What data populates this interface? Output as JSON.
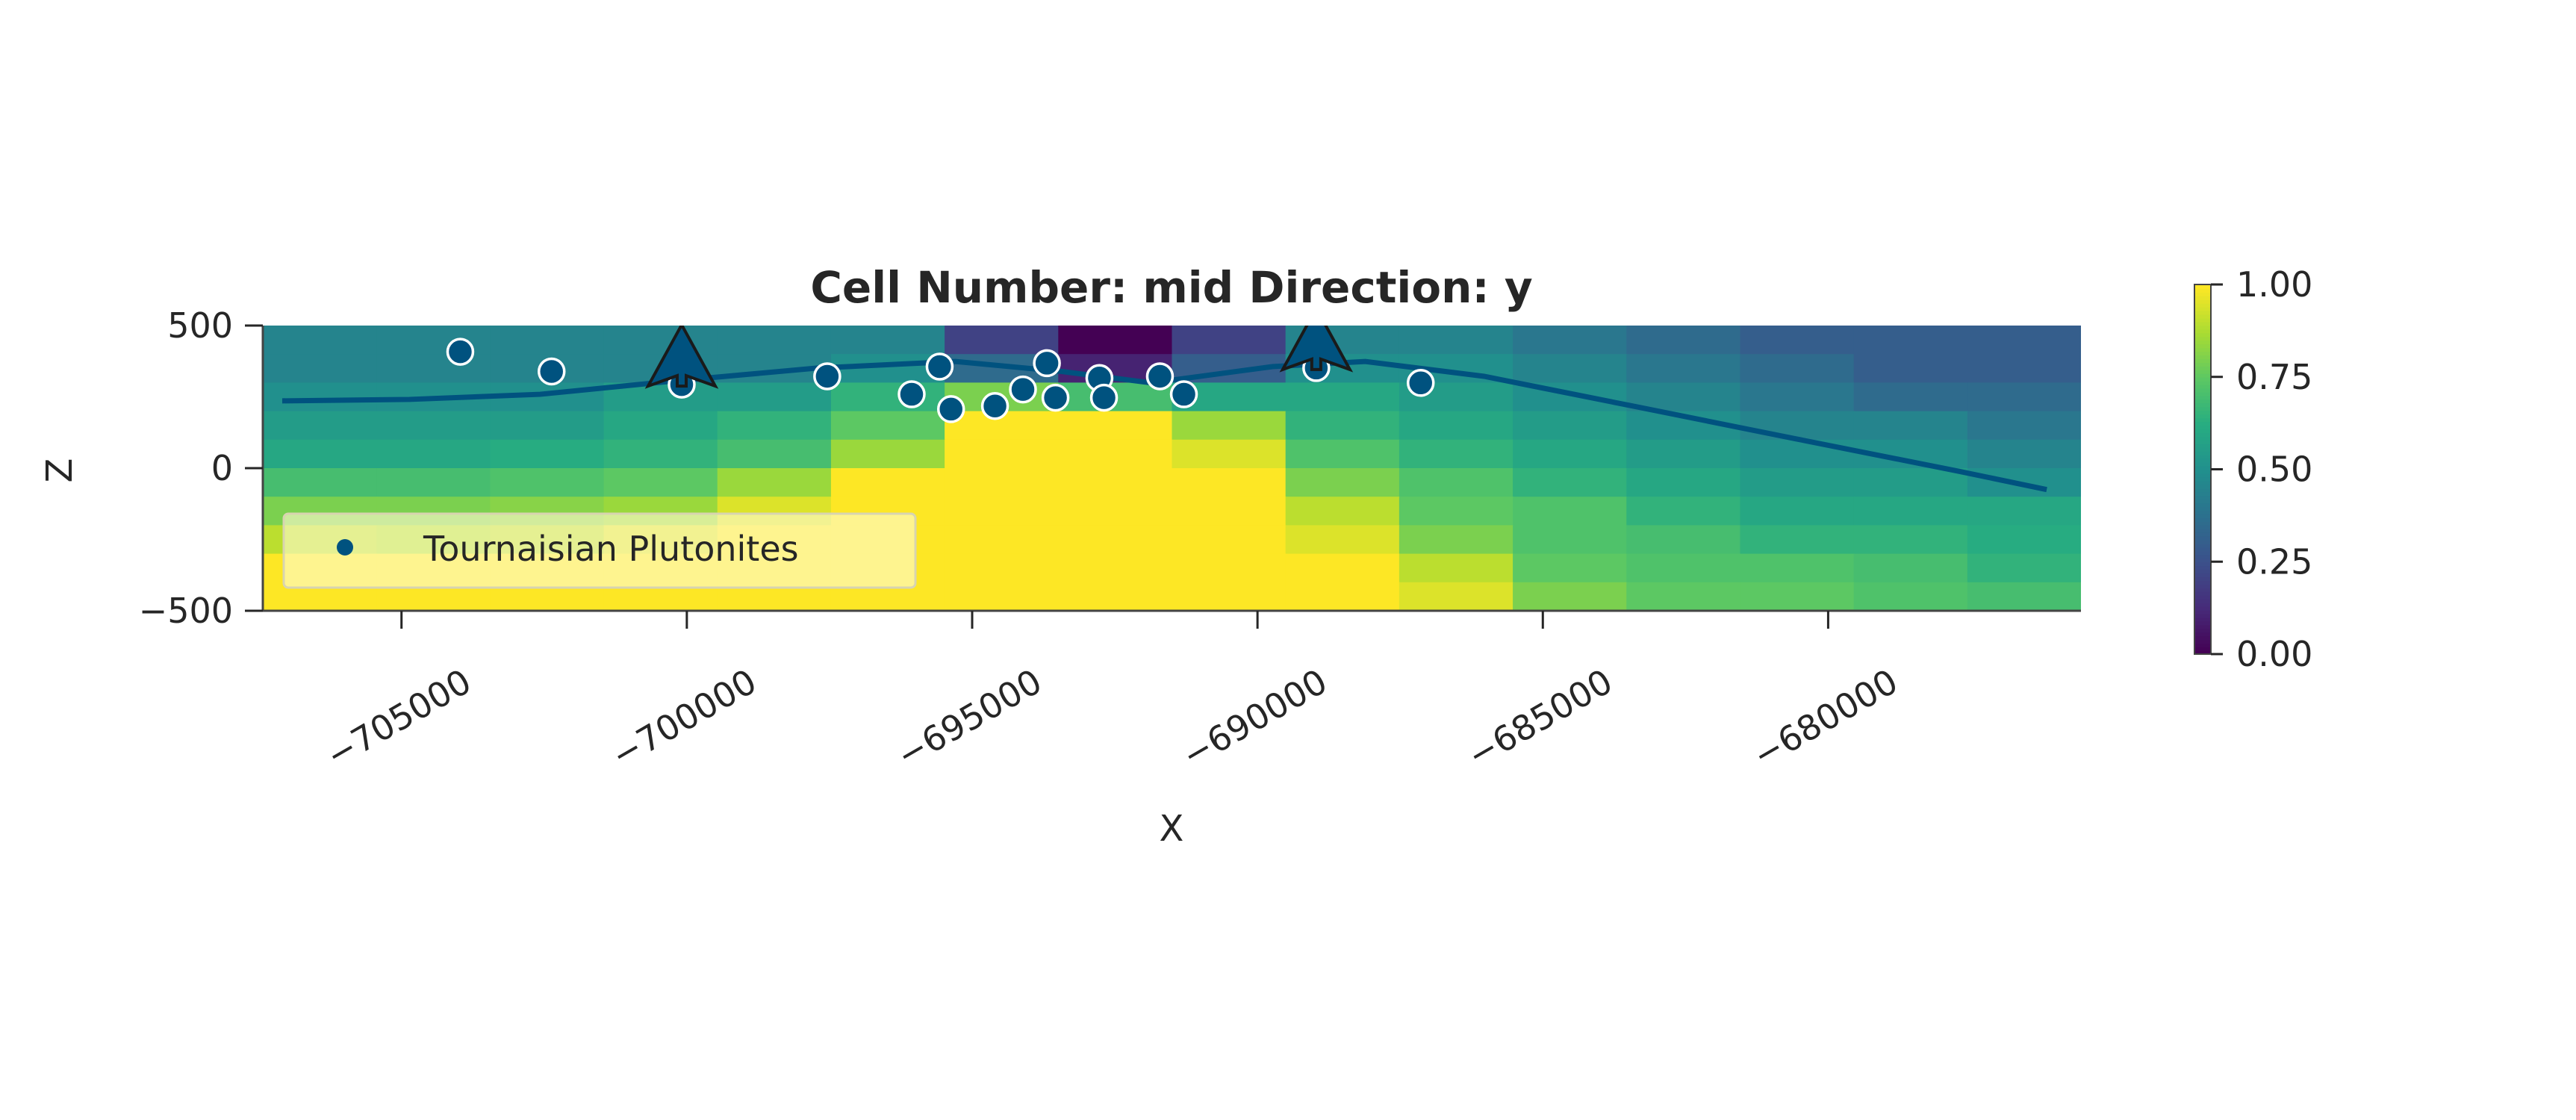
{
  "chart_data": {
    "type": "heatmap",
    "title": "Cell Number: mid Direction: y",
    "xlabel": "X",
    "ylabel": "Z",
    "xlim": [
      -707430,
      -675570
    ],
    "ylim": [
      -500,
      500
    ],
    "xticks": [
      -705000,
      -700000,
      -695000,
      -690000,
      -685000,
      -680000
    ],
    "xtick_labels": [
      "−705000",
      "−700000",
      "−695000",
      "−690000",
      "−685000",
      "−680000"
    ],
    "yticks": [
      500,
      0,
      -500
    ],
    "ytick_labels": [
      "500",
      "0",
      "−500"
    ],
    "grid": false,
    "colormap": "viridis",
    "colorbar": {
      "range": [
        0,
        1
      ],
      "ticks": [
        1.0,
        0.75,
        0.5,
        0.25,
        0.0
      ],
      "tick_labels": [
        "1.00",
        "0.75",
        "0.50",
        "0.25",
        "0.00"
      ]
    },
    "field": {
      "z_rows_top_to_bottom": [
        450,
        350,
        250,
        150,
        50,
        -50,
        -150,
        -250,
        -350,
        -450
      ],
      "values": [
        [
          0.45,
          0.45,
          0.45,
          0.45,
          0.45,
          0.45,
          0.2,
          0.0,
          0.2,
          0.45,
          0.45,
          0.4,
          0.35,
          0.3,
          0.3,
          0.3
        ],
        [
          0.45,
          0.45,
          0.45,
          0.45,
          0.45,
          0.5,
          0.35,
          0.1,
          0.3,
          0.5,
          0.5,
          0.45,
          0.4,
          0.35,
          0.3,
          0.3
        ],
        [
          0.5,
          0.5,
          0.5,
          0.55,
          0.55,
          0.65,
          0.8,
          0.7,
          0.6,
          0.6,
          0.55,
          0.5,
          0.45,
          0.4,
          0.35,
          0.35
        ],
        [
          0.55,
          0.55,
          0.55,
          0.6,
          0.65,
          0.75,
          1.0,
          1.0,
          0.85,
          0.65,
          0.6,
          0.55,
          0.5,
          0.45,
          0.45,
          0.4
        ],
        [
          0.6,
          0.6,
          0.62,
          0.65,
          0.7,
          0.85,
          1.0,
          1.0,
          0.95,
          0.72,
          0.65,
          0.6,
          0.55,
          0.5,
          0.5,
          0.45
        ],
        [
          0.7,
          0.7,
          0.72,
          0.75,
          0.85,
          1.0,
          1.0,
          1.0,
          1.0,
          0.8,
          0.72,
          0.65,
          0.6,
          0.55,
          0.55,
          0.5
        ],
        [
          0.8,
          0.8,
          0.82,
          0.85,
          0.95,
          1.0,
          1.0,
          1.0,
          1.0,
          0.9,
          0.75,
          0.72,
          0.65,
          0.6,
          0.6,
          0.6
        ],
        [
          0.9,
          0.88,
          0.9,
          0.95,
          1.0,
          1.0,
          1.0,
          1.0,
          1.0,
          0.95,
          0.8,
          0.72,
          0.7,
          0.65,
          0.65,
          0.62
        ],
        [
          1.0,
          1.0,
          1.0,
          1.0,
          1.0,
          1.0,
          1.0,
          1.0,
          1.0,
          1.0,
          0.9,
          0.75,
          0.72,
          0.72,
          0.7,
          0.65
        ],
        [
          1.0,
          1.0,
          1.0,
          1.0,
          1.0,
          1.0,
          1.0,
          1.0,
          1.0,
          1.0,
          0.95,
          0.8,
          0.75,
          0.75,
          0.72,
          0.7
        ]
      ]
    },
    "surface_line": {
      "color": "#00527f",
      "x": [
        -707090,
        -704860,
        -702570,
        -700260,
        -697710,
        -695290,
        -693430,
        -691860,
        -689740,
        -688110,
        -686030,
        -683430,
        -680570,
        -677710,
        -676170
      ],
      "z": [
        236,
        241,
        259,
        305,
        351,
        374,
        339,
        299,
        356,
        374,
        322,
        218,
        103,
        -11,
        -75
      ]
    },
    "series": [
      {
        "name": "Tournaisian Plutonites",
        "type": "scatter",
        "color": "#00527f",
        "x": [
          -703970,
          -702370,
          -700090,
          -697540,
          -696060,
          -695570,
          -695370,
          -694600,
          -694110,
          -693690,
          -693540,
          -692770,
          -692690,
          -691710,
          -691290,
          -688970,
          -687140
        ],
        "z": [
          408,
          339,
          293,
          322,
          259,
          356,
          207,
          218,
          276,
          368,
          247,
          316,
          247,
          322,
          259,
          351,
          299
        ]
      }
    ],
    "orientations": {
      "color": "#00527f",
      "x": [
        -700090,
        -688970
      ],
      "z": [
        293,
        351
      ],
      "direction": "up"
    },
    "legend": {
      "placement": "lower-left",
      "entries": [
        "Tournaisian Plutonites"
      ]
    }
  }
}
